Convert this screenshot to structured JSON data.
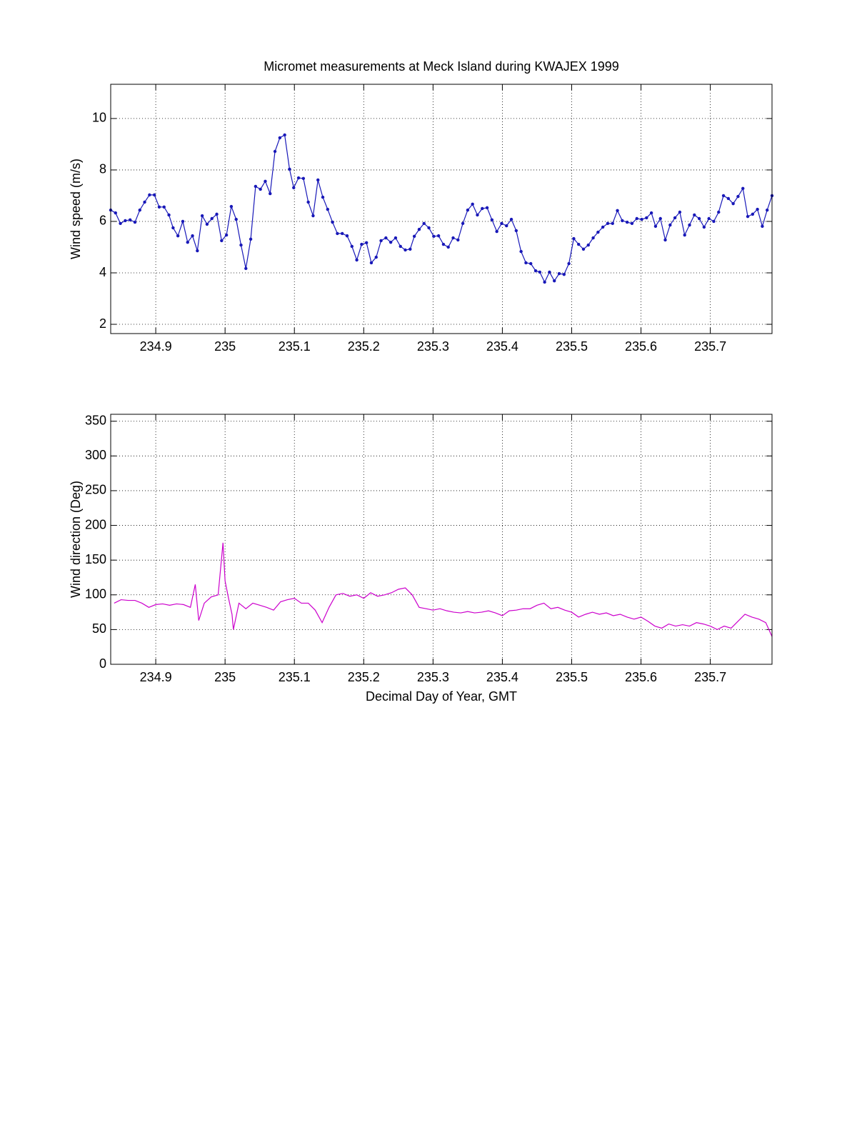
{
  "chart_data": [
    {
      "type": "line",
      "title": "Micromet measurements at Meck Island during KWAJEX 1999",
      "ylabel": "Wind speed (m/s)",
      "xlim": [
        234.835,
        235.789
      ],
      "xticks": [
        234.9,
        235,
        235.1,
        235.2,
        235.3,
        235.4,
        235.5,
        235.6,
        235.7
      ],
      "ylim": [
        1.64,
        11.33
      ],
      "yticks": [
        2,
        4,
        6,
        8,
        10
      ],
      "grid": true,
      "x": [
        234.835,
        234.842,
        234.849,
        234.856,
        234.863,
        234.87,
        234.877,
        234.884,
        234.891,
        234.898,
        234.905,
        234.912,
        234.919,
        234.925,
        234.932,
        234.939,
        234.946,
        234.953,
        234.96,
        234.967,
        234.974,
        234.981,
        234.988,
        234.995,
        235.002,
        235.009,
        235.016,
        235.023,
        235.03,
        235.037,
        235.044,
        235.051,
        235.058,
        235.065,
        235.072,
        235.079,
        235.086,
        235.093,
        235.099,
        235.106,
        235.113,
        235.12,
        235.127,
        235.134,
        235.141,
        235.148,
        235.155,
        235.162,
        235.169,
        235.176,
        235.183,
        235.19,
        235.197,
        235.204,
        235.211,
        235.218,
        235.225,
        235.232,
        235.239,
        235.246,
        235.253,
        235.26,
        235.267,
        235.273,
        235.28,
        235.287,
        235.294,
        235.301,
        235.308,
        235.315,
        235.322,
        235.329,
        235.336,
        235.343,
        235.35,
        235.357,
        235.364,
        235.371,
        235.378,
        235.385,
        235.392,
        235.399,
        235.406,
        235.413,
        235.42,
        235.427,
        235.434,
        235.441,
        235.448,
        235.454,
        235.461,
        235.468,
        235.475,
        235.482,
        235.489,
        235.496,
        235.503,
        235.51,
        235.517,
        235.524,
        235.531,
        235.538,
        235.545,
        235.552,
        235.559,
        235.566,
        235.573,
        235.58,
        235.587,
        235.594,
        235.601,
        235.608,
        235.615,
        235.621,
        235.628,
        235.635,
        235.642,
        235.649,
        235.656,
        235.663,
        235.67,
        235.677,
        235.684,
        235.691,
        235.698,
        235.705,
        235.712,
        235.719,
        235.726,
        235.733,
        235.74,
        235.747,
        235.754,
        235.761,
        235.768,
        235.775,
        235.782,
        235.789
      ],
      "series": [
        {
          "color": "#1818b8",
          "marker": "dot",
          "values": [
            6.44,
            6.33,
            5.92,
            6.03,
            6.06,
            5.97,
            6.44,
            6.75,
            7.03,
            7.03,
            6.56,
            6.56,
            6.25,
            5.75,
            5.44,
            6.0,
            5.19,
            5.44,
            4.86,
            6.22,
            5.89,
            6.11,
            6.28,
            5.25,
            5.47,
            6.58,
            6.08,
            5.08,
            4.17,
            5.31,
            7.36,
            7.25,
            7.56,
            7.08,
            8.72,
            9.25,
            9.36,
            8.03,
            7.31,
            7.69,
            7.67,
            6.75,
            6.22,
            7.61,
            6.94,
            6.47,
            5.97,
            5.53,
            5.53,
            5.44,
            5.03,
            4.5,
            5.11,
            5.17,
            4.39,
            4.61,
            5.25,
            5.36,
            5.19,
            5.36,
            5.03,
            4.89,
            4.92,
            5.42,
            5.69,
            5.92,
            5.75,
            5.42,
            5.44,
            5.11,
            5.0,
            5.36,
            5.28,
            5.92,
            6.44,
            6.67,
            6.25,
            6.5,
            6.53,
            6.06,
            5.61,
            5.92,
            5.83,
            6.08,
            5.64,
            4.83,
            4.39,
            4.36,
            4.08,
            4.03,
            3.64,
            4.03,
            3.69,
            3.97,
            3.94,
            4.36,
            5.33,
            5.11,
            4.92,
            5.08,
            5.36,
            5.58,
            5.78,
            5.92,
            5.92,
            6.42,
            6.03,
            5.97,
            5.92,
            6.11,
            6.08,
            6.14,
            6.33,
            5.81,
            6.11,
            5.28,
            5.86,
            6.14,
            6.36,
            5.47,
            5.86,
            6.25,
            6.11,
            5.78,
            6.11,
            6.0,
            6.36,
            7.0,
            6.89,
            6.69,
            6.97,
            7.28,
            6.19,
            6.28,
            6.47,
            5.81,
            6.44,
            7.0
          ]
        }
      ]
    },
    {
      "type": "line",
      "ylabel": "Wind direction (Deg)",
      "xlabel": "Decimal Day of Year, GMT",
      "xlim": [
        234.835,
        235.789
      ],
      "xticks": [
        234.9,
        235,
        235.1,
        235.2,
        235.3,
        235.4,
        235.5,
        235.6,
        235.7
      ],
      "ylim": [
        0,
        360
      ],
      "yticks": [
        0,
        50,
        100,
        150,
        200,
        250,
        300,
        350
      ],
      "grid": true,
      "x": [
        234.84,
        234.85,
        234.86,
        234.87,
        234.88,
        234.89,
        234.9,
        234.91,
        234.92,
        234.93,
        234.94,
        234.95,
        234.957,
        234.962,
        234.97,
        234.98,
        234.99,
        234.997,
        235.0,
        235.005,
        235.01,
        235.012,
        235.02,
        235.03,
        235.04,
        235.05,
        235.06,
        235.07,
        235.08,
        235.09,
        235.1,
        235.11,
        235.12,
        235.13,
        235.14,
        235.15,
        235.16,
        235.17,
        235.18,
        235.19,
        235.2,
        235.21,
        235.22,
        235.23,
        235.24,
        235.25,
        235.26,
        235.27,
        235.28,
        235.29,
        235.3,
        235.31,
        235.32,
        235.33,
        235.34,
        235.35,
        235.36,
        235.37,
        235.38,
        235.39,
        235.4,
        235.41,
        235.42,
        235.43,
        235.44,
        235.45,
        235.46,
        235.47,
        235.48,
        235.49,
        235.5,
        235.51,
        235.52,
        235.53,
        235.54,
        235.55,
        235.56,
        235.57,
        235.58,
        235.59,
        235.6,
        235.61,
        235.62,
        235.63,
        235.64,
        235.65,
        235.66,
        235.67,
        235.68,
        235.69,
        235.7,
        235.71,
        235.72,
        235.73,
        235.74,
        235.75,
        235.76,
        235.77,
        235.78,
        235.789
      ],
      "series": [
        {
          "color": "#cc00cc",
          "values": [
            88,
            93,
            92,
            92,
            88,
            82,
            86,
            87,
            85,
            87,
            86,
            82,
            115,
            63,
            88,
            97,
            100,
            175,
            120,
            95,
            72,
            50,
            88,
            80,
            88,
            85,
            82,
            78,
            90,
            93,
            95,
            88,
            88,
            78,
            60,
            82,
            100,
            102,
            98,
            100,
            95,
            103,
            98,
            100,
            103,
            108,
            110,
            100,
            82,
            80,
            78,
            80,
            77,
            75,
            74,
            76,
            74,
            75,
            77,
            74,
            70,
            77,
            78,
            80,
            80,
            85,
            88,
            80,
            82,
            78,
            75,
            68,
            72,
            75,
            72,
            74,
            70,
            72,
            68,
            65,
            68,
            62,
            55,
            52,
            58,
            55,
            57,
            55,
            60,
            58,
            55,
            50,
            55,
            52,
            62,
            72,
            68,
            65,
            60,
            40
          ]
        }
      ]
    }
  ]
}
